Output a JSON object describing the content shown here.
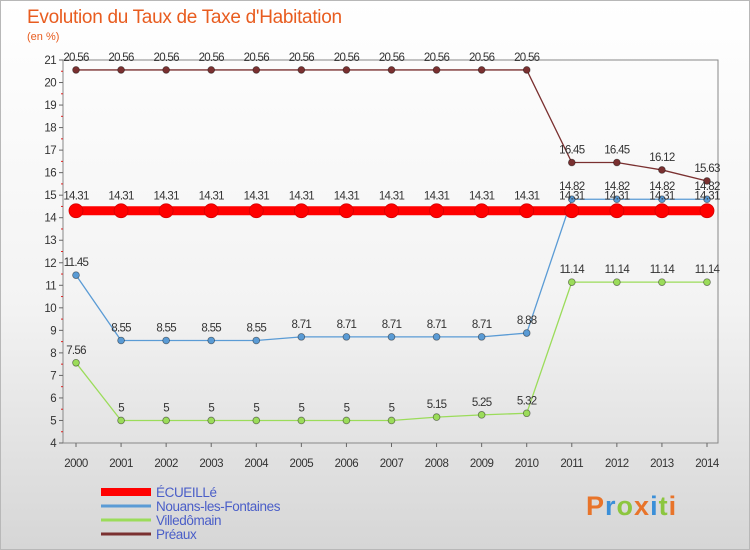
{
  "header": {
    "title": "Evolution du Taux de Taxe d'Habitation",
    "subtitle": "(en %)"
  },
  "logo": {
    "text": "Proxiti",
    "colors": [
      "#e8742a",
      "#3b8fd8",
      "#8cc63f",
      "#e8742a",
      "#3b8fd8",
      "#8cc63f",
      "#e8742a"
    ]
  },
  "chart_data": {
    "type": "line",
    "title": "Evolution du Taux de Taxe d'Habitation",
    "subtitle": "(en %)",
    "xlabel": "",
    "ylabel": "",
    "x": [
      "2000",
      "2001",
      "2002",
      "2003",
      "2004",
      "2005",
      "2006",
      "2007",
      "2008",
      "2009",
      "2010",
      "2011",
      "2012",
      "2013",
      "2014"
    ],
    "ylim": [
      4,
      21
    ],
    "yticks": [
      4,
      5,
      6,
      7,
      8,
      9,
      10,
      11,
      12,
      13,
      14,
      15,
      16,
      17,
      18,
      19,
      20,
      21
    ],
    "grid": false,
    "legend_position": "bottom-left",
    "series": [
      {
        "name": "ÉCUEILLé",
        "color": "#ff0000",
        "values": [
          14.31,
          14.31,
          14.31,
          14.31,
          14.31,
          14.31,
          14.31,
          14.31,
          14.31,
          14.31,
          14.31,
          14.31,
          14.31,
          14.31,
          14.31
        ],
        "labels": [
          "14.31",
          "14.31",
          "14.31",
          "14.31",
          "14.31",
          "14.31",
          "14.31",
          "14.31",
          "14.31",
          "14.31",
          "14.31",
          "14.31",
          "14.31",
          "14.31",
          "14.31"
        ]
      },
      {
        "name": "Nouans-les-Fontaines",
        "color": "#5a9bd5",
        "values": [
          11.45,
          8.55,
          8.55,
          8.55,
          8.55,
          8.71,
          8.71,
          8.71,
          8.71,
          8.71,
          8.88,
          14.82,
          14.82,
          14.82,
          14.82
        ],
        "labels": [
          "11.45",
          "8.55",
          "8.55",
          "8.55",
          "8.55",
          "8.71",
          "8.71",
          "8.71",
          "8.71",
          "8.71",
          "8.88",
          "14.82",
          "14.82",
          "14.82",
          "14.82"
        ]
      },
      {
        "name": "Villedômain",
        "color": "#9bdc5a",
        "values": [
          7.56,
          5,
          5,
          5,
          5,
          5,
          5,
          5,
          5.15,
          5.25,
          5.32,
          11.14,
          11.14,
          11.14,
          11.14
        ],
        "labels": [
          "7.56",
          "5",
          "5",
          "5",
          "5",
          "5",
          "5",
          "5",
          "5.15",
          "5.25",
          "5.32",
          "11.14",
          "11.14",
          "11.14",
          "11.14"
        ]
      },
      {
        "name": "Préaux",
        "color": "#7a3030",
        "values": [
          20.56,
          20.56,
          20.56,
          20.56,
          20.56,
          20.56,
          20.56,
          20.56,
          20.56,
          20.56,
          20.56,
          16.45,
          16.45,
          16.12,
          15.63
        ],
        "labels": [
          "20.56",
          "20.56",
          "20.56",
          "20.56",
          "20.56",
          "20.56",
          "20.56",
          "20.56",
          "20.56",
          "20.56",
          "20.56",
          "16.45",
          "16.45",
          "16.12",
          "15.63"
        ]
      }
    ]
  }
}
